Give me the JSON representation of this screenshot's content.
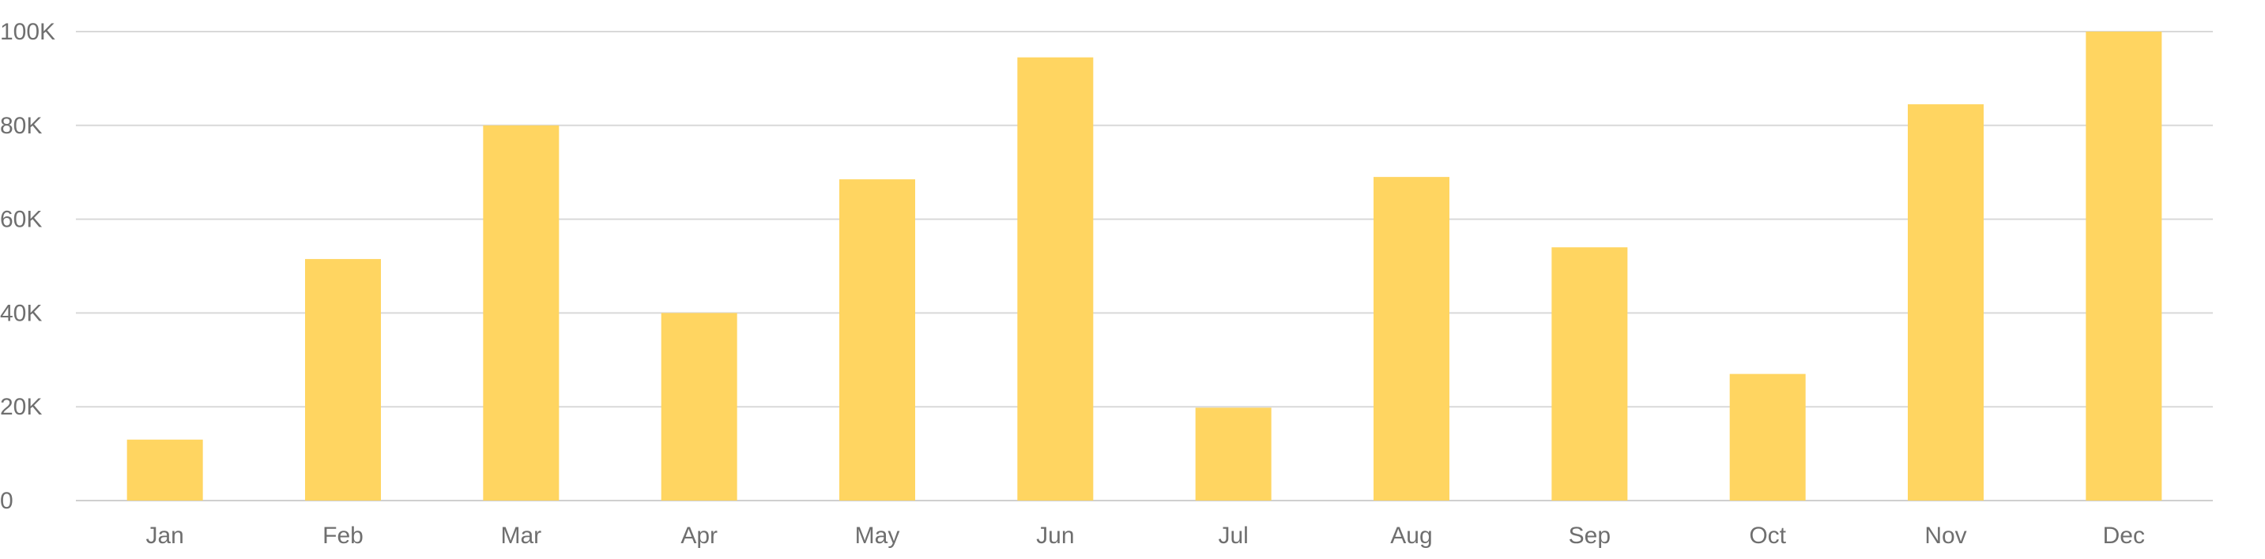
{
  "chart_data": {
    "type": "bar",
    "categories": [
      "Jan",
      "Feb",
      "Mar",
      "Apr",
      "May",
      "Jun",
      "Jul",
      "Aug",
      "Sep",
      "Oct",
      "Nov",
      "Dec"
    ],
    "values": [
      13000,
      51500,
      80000,
      40000,
      68500,
      94500,
      19800,
      69000,
      54000,
      27000,
      84500,
      100000
    ],
    "ylim": [
      0,
      100000
    ],
    "yticks": [
      0,
      20000,
      40000,
      60000,
      80000,
      100000
    ],
    "ytick_labels": [
      "0",
      "20K",
      "40K",
      "60K",
      "80K",
      "100K"
    ],
    "grid": true,
    "bar_color": "#FFD561",
    "grid_color": "#D9D9D9",
    "label_color": "#6F6F6F"
  }
}
